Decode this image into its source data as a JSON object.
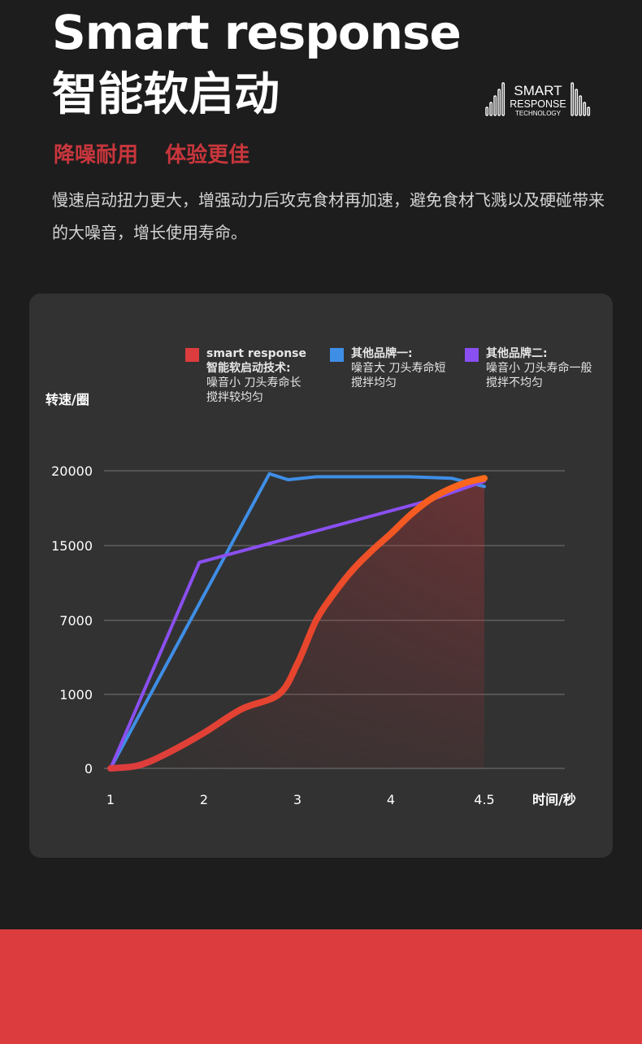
{
  "header": {
    "title_en": "Smart response",
    "title_cn": "智能软启动",
    "logo_text": {
      "line1": "SMART",
      "line2": "RESPONSE",
      "line3": "TECHNOLOGY"
    },
    "tagline": [
      "降噪耐用",
      "体验更佳"
    ],
    "description": "慢速启动扭力更大，增强动力后攻克食材再加速，避免食材飞溅以及硬碰带来的大噪音，增长使用寿命。"
  },
  "colors": {
    "background": "#1d1d1d",
    "card": "#323232",
    "accent_red": "#c8363c",
    "band_red": "#dc3c3e",
    "series_smart_start": "#dc3c3e",
    "series_smart_end": "#ff6a1a",
    "series_brand1": "#3f8ee6",
    "series_brand2": "#8a4ff0"
  },
  "chart_data": {
    "type": "line",
    "title": "",
    "xlabel": "时间/秒",
    "ylabel": "转速/圈",
    "x_ticks": [
      "1",
      "2",
      "3",
      "4",
      "4.5"
    ],
    "y_ticks": [
      "0",
      "1000",
      "7000",
      "15000",
      "20000"
    ],
    "grid": true,
    "legend_position": "top",
    "series": [
      {
        "name": "smart response\n智能软启动技术:",
        "description": "噪音小 刀头寿命长\n搅拌较均匀",
        "color": "#dc3c3e",
        "x": [
          1,
          1.3,
          1.6,
          2.0,
          2.4,
          2.8,
          3.0,
          3.2,
          3.4,
          3.6,
          3.8,
          4.0,
          4.2,
          4.4,
          4.6,
          4.8,
          5.0
        ],
        "y": [
          0,
          40,
          200,
          480,
          800,
          1000,
          3500,
          7000,
          10000,
          12500,
          14500,
          15800,
          17000,
          18000,
          18700,
          19200,
          19500
        ]
      },
      {
        "name": "其他品牌一:",
        "description": "噪音大 刀头寿命短\n搅拌均匀",
        "color": "#3f8ee6",
        "x": [
          1,
          2.7,
          2.9,
          3.2,
          4.2,
          4.65,
          5.0
        ],
        "y": [
          0,
          19800,
          19400,
          19600,
          19600,
          19500,
          18950
        ]
      },
      {
        "name": "其他品牌二:",
        "description": "噪音小 刀头寿命一般\n搅拌不均匀",
        "color": "#8a4ff0",
        "x": [
          1,
          1.95,
          4.4,
          5.0
        ],
        "y": [
          0,
          13200,
          18000,
          19300
        ]
      }
    ]
  }
}
